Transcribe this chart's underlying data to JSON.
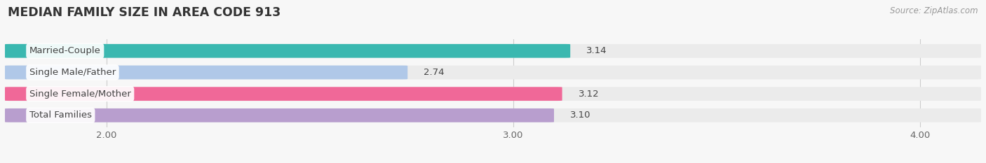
{
  "title": "MEDIAN FAMILY SIZE IN AREA CODE 913",
  "source": "Source: ZipAtlas.com",
  "categories": [
    "Married-Couple",
    "Single Male/Father",
    "Single Female/Mother",
    "Total Families"
  ],
  "values": [
    3.14,
    2.74,
    3.12,
    3.1
  ],
  "bar_colors": [
    "#3ab8b0",
    "#b0c8e8",
    "#f06898",
    "#b89ece"
  ],
  "bar_bg_color": "#ebebeb",
  "xlim_min": 1.75,
  "xlim_max": 4.15,
  "data_min": 1.75,
  "xticks": [
    2.0,
    3.0,
    4.0
  ],
  "xtick_labels": [
    "2.00",
    "3.00",
    "4.00"
  ],
  "background_color": "#f7f7f7",
  "bar_height": 0.62,
  "bar_gap": 0.38,
  "title_fontsize": 12.5,
  "label_fontsize": 9.5,
  "value_fontsize": 9.5,
  "source_fontsize": 8.5
}
